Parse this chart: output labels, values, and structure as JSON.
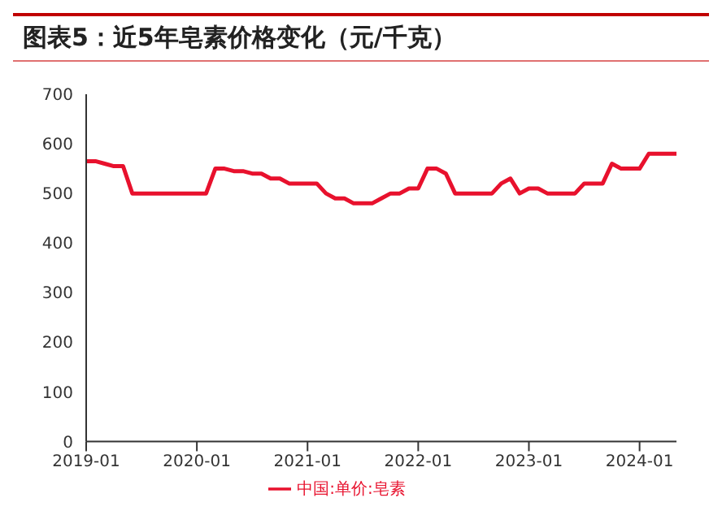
{
  "chart_data": {
    "type": "line",
    "title": "图表5：近5年皂素价格变化（元/千克）",
    "x": [
      "2019-01",
      "2019-02",
      "2019-03",
      "2019-04",
      "2019-05",
      "2019-06",
      "2020-02",
      "2020-03",
      "2020-04",
      "2020-05",
      "2020-06",
      "2020-07",
      "2020-08",
      "2020-09",
      "2020-10",
      "2020-11",
      "2020-12",
      "2021-02",
      "2021-03",
      "2021-04",
      "2021-05",
      "2021-06",
      "2021-08",
      "2021-09",
      "2021-10",
      "2021-11",
      "2021-12",
      "2022-01",
      "2022-02",
      "2022-03",
      "2022-04",
      "2022-05",
      "2022-09",
      "2022-10",
      "2022-11",
      "2022-12",
      "2023-01",
      "2023-02",
      "2023-03",
      "2023-06",
      "2023-07",
      "2023-09",
      "2023-10",
      "2023-11",
      "2024-01",
      "2024-02",
      "2024-05"
    ],
    "series": [
      {
        "name": "中国:单价:皂素",
        "color": "#e8112d",
        "values": [
          565,
          565,
          560,
          555,
          555,
          500,
          500,
          550,
          550,
          545,
          545,
          540,
          540,
          530,
          530,
          520,
          520,
          520,
          500,
          490,
          490,
          480,
          480,
          490,
          500,
          500,
          510,
          510,
          550,
          550,
          540,
          500,
          500,
          520,
          530,
          500,
          510,
          510,
          500,
          500,
          520,
          520,
          560,
          550,
          550,
          580,
          580
        ]
      }
    ],
    "xlim": [
      "2019-01",
      "2024-05"
    ],
    "xticks": [
      "2019-01",
      "2020-01",
      "2021-01",
      "2022-01",
      "2023-01",
      "2024-01"
    ],
    "ylim": [
      0,
      700
    ],
    "yticks": [
      0,
      100,
      200,
      300,
      400,
      500,
      600,
      700
    ],
    "legend": "bottom",
    "marker": "none",
    "line_style": "solid"
  }
}
